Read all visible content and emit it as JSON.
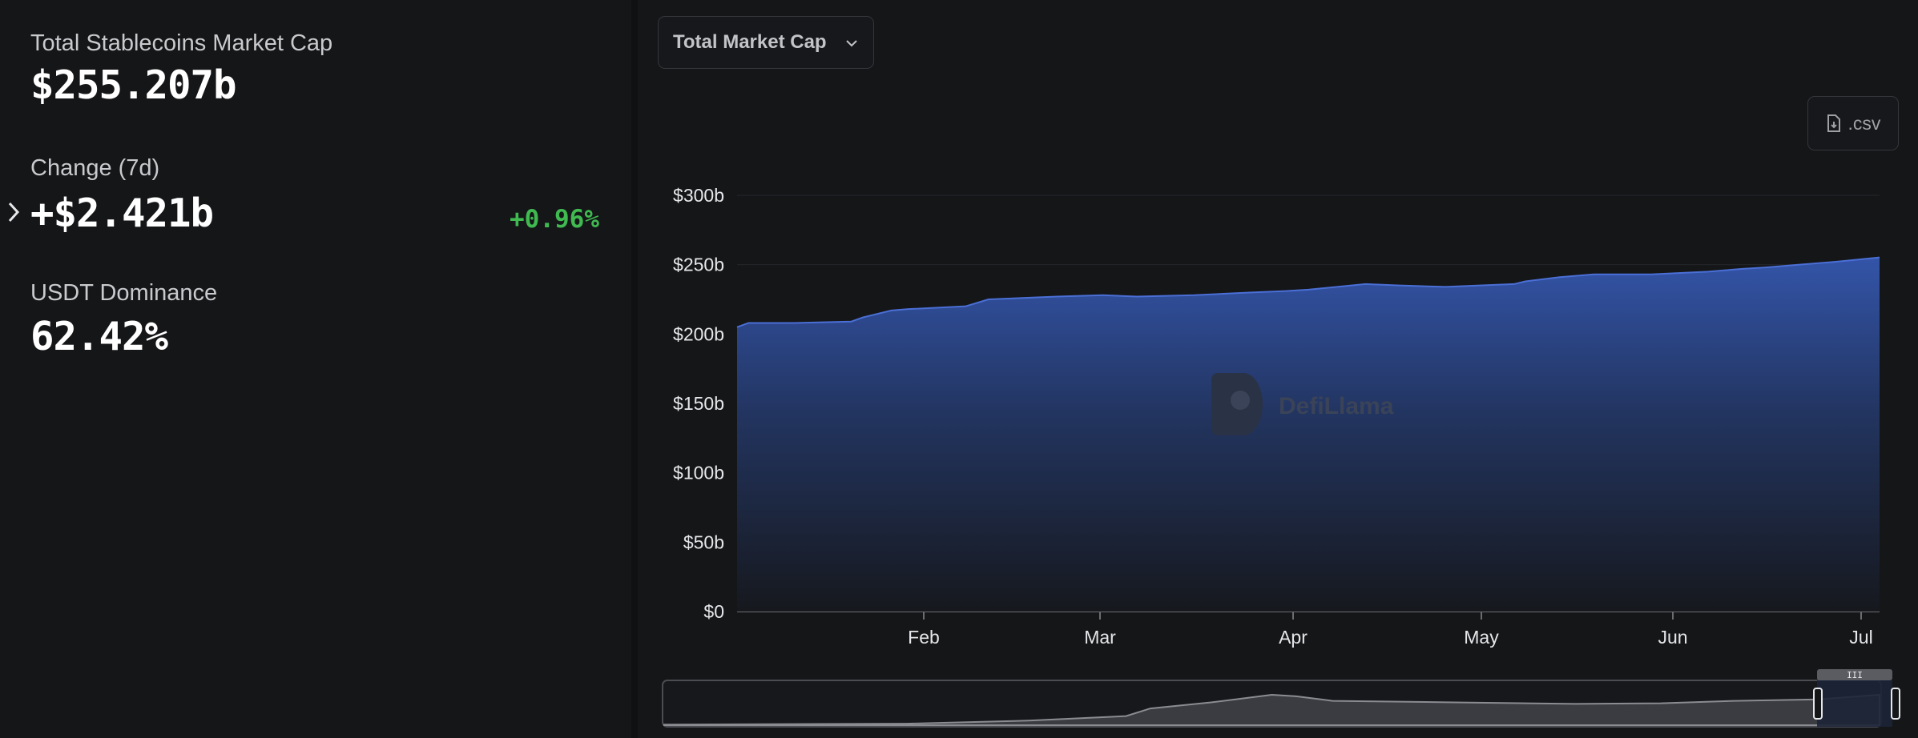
{
  "stats": {
    "total_label": "Total Stablecoins Market Cap",
    "total_value": "$255.207b",
    "change_label": "Change (7d)",
    "change_value": "+$2.421b",
    "change_pct": "+0.96%",
    "dominance_label": "USDT Dominance",
    "dominance_value": "62.42%"
  },
  "controls": {
    "dropdown_label": "Total Market Cap",
    "csv_label": ".csv"
  },
  "watermark": "DefiLlama",
  "colors": {
    "area_fill": "#3354a8",
    "line": "#4a6fd6",
    "positive": "#3fb950"
  },
  "chart_data": {
    "type": "area",
    "series": [
      {
        "values": [
          [
            0,
            205
          ],
          [
            0.01,
            208
          ],
          [
            0.05,
            208
          ],
          [
            0.1,
            209
          ],
          [
            0.11,
            212
          ],
          [
            0.135,
            217
          ],
          [
            0.15,
            218
          ],
          [
            0.2,
            220
          ],
          [
            0.22,
            225
          ],
          [
            0.28,
            227
          ],
          [
            0.32,
            228
          ],
          [
            0.35,
            227
          ],
          [
            0.4,
            228
          ],
          [
            0.45,
            230
          ],
          [
            0.48,
            231
          ],
          [
            0.5,
            232
          ],
          [
            0.55,
            236
          ],
          [
            0.58,
            235
          ],
          [
            0.62,
            234
          ],
          [
            0.65,
            235
          ],
          [
            0.68,
            236
          ],
          [
            0.69,
            238
          ],
          [
            0.72,
            241
          ],
          [
            0.75,
            243
          ],
          [
            0.8,
            243
          ],
          [
            0.85,
            245
          ],
          [
            0.88,
            247
          ],
          [
            0.9,
            248
          ],
          [
            0.93,
            250
          ],
          [
            0.96,
            252
          ],
          [
            1.0,
            255.2
          ]
        ]
      }
    ],
    "x_ticks": [
      "Feb",
      "Mar",
      "Apr",
      "May",
      "Jun",
      "Jul"
    ],
    "y_ticks": [
      "$0",
      "$50b",
      "$100b",
      "$150b",
      "$200b",
      "$250b",
      "$300b"
    ],
    "ylim": [
      0,
      300
    ],
    "grid": true
  }
}
